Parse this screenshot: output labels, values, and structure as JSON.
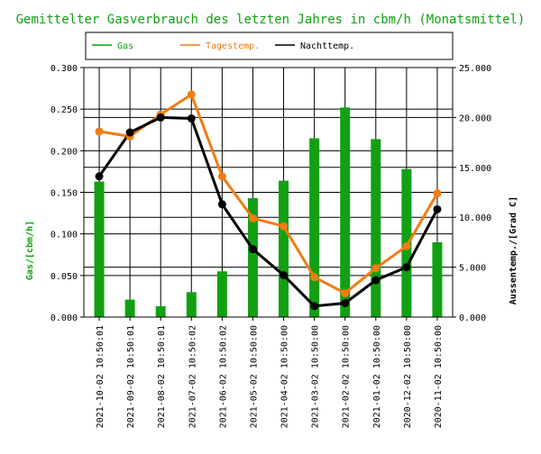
{
  "chart_data": {
    "type": "bar",
    "title": "Gemittelter Gasverbrauch des letzten Jahres in cbm/h (Monatsmittel)",
    "ylabel": "Gas/[cbm/h]",
    "y2label": "Aussentemp./[Grad C]",
    "ylim": [
      0,
      0.3
    ],
    "y2lim": [
      0,
      25
    ],
    "yticks": [
      "0.000",
      "0.050",
      "0.100",
      "0.150",
      "0.200",
      "0.250",
      "0.300"
    ],
    "y2ticks": [
      "0.000",
      "5.000",
      "10.000",
      "15.000",
      "20.000",
      "25.000"
    ],
    "categories": [
      "2021-10-02 10:50:01",
      "2021-09-02 10:50:01",
      "2021-08-02 10:50:01",
      "2021-07-02 10:50:02",
      "2021-06-02 10:50:02",
      "2021-05-02 10:50:00",
      "2021-04-02 10:50:00",
      "2021-03-02 10:50:00",
      "2021-02-02 10:50:00",
      "2021-01-02 10:50:00",
      "2020-12-02 10:50:00",
      "2020-11-02 10:50:00"
    ],
    "series": [
      {
        "name": "Gas",
        "type": "bar",
        "axis": "left",
        "color": "#12a012",
        "values": [
          0.163,
          0.021,
          0.013,
          0.03,
          0.055,
          0.143,
          0.164,
          0.215,
          0.252,
          0.214,
          0.178,
          0.09
        ]
      },
      {
        "name": "Tagestemp.",
        "type": "line",
        "axis": "right",
        "color": "#f07c14",
        "values": [
          18.6,
          18.1,
          20.3,
          22.3,
          14.1,
          9.9,
          9.1,
          4.0,
          2.4,
          4.9,
          7.1,
          12.4
        ]
      },
      {
        "name": "Nachttemp.",
        "type": "line",
        "axis": "right",
        "color": "#000000",
        "values": [
          14.1,
          18.5,
          20.0,
          19.9,
          11.3,
          6.8,
          4.2,
          1.1,
          1.4,
          3.7,
          5.0,
          10.8
        ]
      }
    ],
    "legend": "top",
    "grid": true
  }
}
